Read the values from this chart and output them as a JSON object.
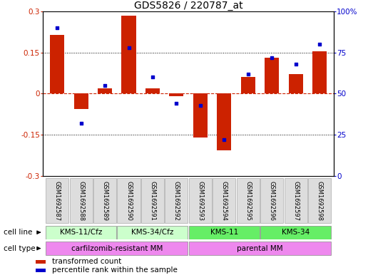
{
  "title": "GDS5826 / 220787_at",
  "samples": [
    "GSM1692587",
    "GSM1692588",
    "GSM1692589",
    "GSM1692590",
    "GSM1692591",
    "GSM1692592",
    "GSM1692593",
    "GSM1692594",
    "GSM1692595",
    "GSM1692596",
    "GSM1692597",
    "GSM1692598"
  ],
  "bar_values": [
    0.215,
    -0.055,
    0.02,
    0.285,
    0.02,
    -0.01,
    -0.16,
    -0.205,
    0.06,
    0.13,
    0.07,
    0.155
  ],
  "scatter_values": [
    90,
    32,
    55,
    78,
    60,
    44,
    43,
    22,
    62,
    72,
    68,
    80
  ],
  "bar_color": "#cc2200",
  "scatter_color": "#0000cc",
  "ylim_left": [
    -0.3,
    0.3
  ],
  "ylim_right": [
    0,
    100
  ],
  "yticks_left": [
    -0.3,
    -0.15,
    0,
    0.15,
    0.3
  ],
  "yticks_right": [
    0,
    25,
    50,
    75,
    100
  ],
  "ytick_labels_right": [
    "0",
    "25",
    "50",
    "75",
    "100%"
  ],
  "hlines": [
    0.15,
    0.0,
    -0.15
  ],
  "hline_styles": [
    "dotted",
    "red_dashed",
    "dotted"
  ],
  "cell_line_groups": [
    {
      "label": "KMS-11/Cfz",
      "start": 0,
      "end": 3,
      "color": "#ccffcc"
    },
    {
      "label": "KMS-34/Cfz",
      "start": 3,
      "end": 6,
      "color": "#ccffcc"
    },
    {
      "label": "KMS-11",
      "start": 6,
      "end": 9,
      "color": "#66ee66"
    },
    {
      "label": "KMS-34",
      "start": 9,
      "end": 12,
      "color": "#66ee66"
    }
  ],
  "cell_type_groups": [
    {
      "label": "carfilzomib-resistant MM",
      "start": 0,
      "end": 6,
      "color": "#ee88ee"
    },
    {
      "label": "parental MM",
      "start": 6,
      "end": 12,
      "color": "#ee88ee"
    }
  ],
  "cell_line_row_label": "cell line",
  "cell_type_row_label": "cell type",
  "legend_items": [
    {
      "color": "#cc2200",
      "label": "transformed count"
    },
    {
      "color": "#0000cc",
      "label": "percentile rank within the sample"
    }
  ],
  "background_color": "#ffffff",
  "title_fontsize": 10,
  "tick_fontsize": 7.5,
  "sample_fontsize": 6,
  "row_label_fontsize": 7.5,
  "group_label_fontsize": 7.5,
  "legend_fontsize": 7.5
}
